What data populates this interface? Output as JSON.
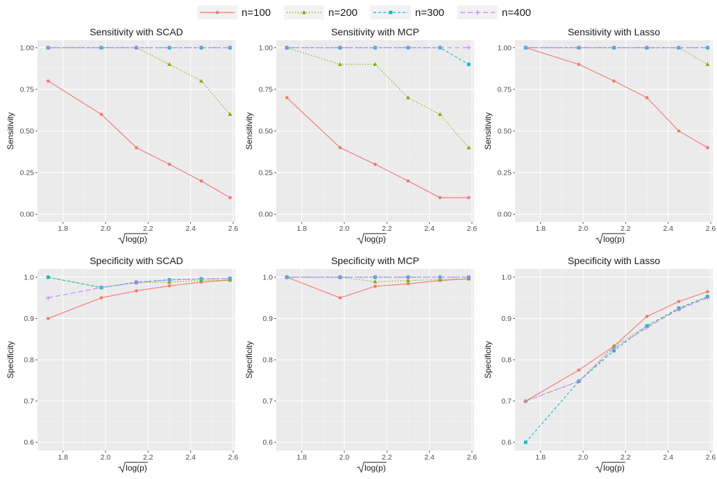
{
  "legend": {
    "items": [
      {
        "label": "n=100",
        "color": "#F8766D",
        "dash": "solid",
        "marker": "circle"
      },
      {
        "label": "n=200",
        "color": "#7CAE00",
        "dash": "dotted",
        "marker": "triangle"
      },
      {
        "label": "n=300",
        "color": "#00BFC4",
        "dash": "dashed",
        "marker": "square"
      },
      {
        "label": "n=400",
        "color": "#C77CFF",
        "dash": "longdash",
        "marker": "plus"
      }
    ]
  },
  "chart_data": [
    {
      "type": "line",
      "title": "Sensitivity with SCAD",
      "xlabel": "log(p)",
      "ylabel": "Sensitivity",
      "x": [
        1.73,
        1.98,
        2.145,
        2.3,
        2.45,
        2.585
      ],
      "xlim": [
        1.68,
        2.61
      ],
      "ylim": [
        -0.045,
        1.045
      ],
      "xticks": [
        1.8,
        2.0,
        2.2,
        2.4,
        2.6
      ],
      "yticks": [
        0.0,
        0.25,
        0.5,
        0.75,
        1.0
      ],
      "xtick_labels": [
        "1.8",
        "2.0",
        "2.2",
        "2.4",
        "2.6"
      ],
      "ytick_labels": [
        "0.00",
        "0.25",
        "0.50",
        "0.75",
        "1.00"
      ],
      "series": [
        {
          "name": "n=100",
          "values": [
            0.8,
            0.6,
            0.4,
            0.3,
            0.2,
            0.1
          ]
        },
        {
          "name": "n=200",
          "values": [
            1.0,
            1.0,
            1.0,
            0.9,
            0.8,
            0.6
          ]
        },
        {
          "name": "n=300",
          "values": [
            1.0,
            1.0,
            1.0,
            1.0,
            1.0,
            1.0
          ]
        },
        {
          "name": "n=400",
          "values": [
            1.0,
            1.0,
            1.0,
            1.0,
            1.0,
            1.0
          ]
        }
      ]
    },
    {
      "type": "line",
      "title": "Sensitivity with MCP",
      "xlabel": "log(p)",
      "ylabel": "Sensitivity",
      "x": [
        1.73,
        1.98,
        2.145,
        2.3,
        2.45,
        2.585
      ],
      "xlim": [
        1.68,
        2.61
      ],
      "ylim": [
        -0.045,
        1.045
      ],
      "xticks": [
        1.8,
        2.0,
        2.2,
        2.4,
        2.6
      ],
      "yticks": [
        0.0,
        0.25,
        0.5,
        0.75,
        1.0
      ],
      "xtick_labels": [
        "1.8",
        "2.0",
        "2.2",
        "2.4",
        "2.6"
      ],
      "ytick_labels": [
        "0.00",
        "0.25",
        "0.50",
        "0.75",
        "1.00"
      ],
      "series": [
        {
          "name": "n=100",
          "values": [
            0.7,
            0.4,
            0.3,
            0.2,
            0.1,
            0.1
          ]
        },
        {
          "name": "n=200",
          "values": [
            1.0,
            0.9,
            0.9,
            0.7,
            0.6,
            0.4
          ]
        },
        {
          "name": "n=300",
          "values": [
            1.0,
            1.0,
            1.0,
            1.0,
            1.0,
            0.9
          ]
        },
        {
          "name": "n=400",
          "values": [
            1.0,
            1.0,
            1.0,
            1.0,
            1.0,
            1.0
          ]
        }
      ]
    },
    {
      "type": "line",
      "title": "Sensitivity with Lasso",
      "xlabel": "log(p)",
      "ylabel": "Sensitivity",
      "x": [
        1.73,
        1.98,
        2.145,
        2.3,
        2.45,
        2.585
      ],
      "xlim": [
        1.68,
        2.61
      ],
      "ylim": [
        -0.045,
        1.045
      ],
      "xticks": [
        1.8,
        2.0,
        2.2,
        2.4,
        2.6
      ],
      "yticks": [
        0.0,
        0.25,
        0.5,
        0.75,
        1.0
      ],
      "xtick_labels": [
        "1.8",
        "2.0",
        "2.2",
        "2.4",
        "2.6"
      ],
      "ytick_labels": [
        "0.00",
        "0.25",
        "0.50",
        "0.75",
        "1.00"
      ],
      "series": [
        {
          "name": "n=100",
          "values": [
            1.0,
            0.9,
            0.8,
            0.7,
            0.5,
            0.4
          ]
        },
        {
          "name": "n=200",
          "values": [
            1.0,
            1.0,
            1.0,
            1.0,
            1.0,
            0.9
          ]
        },
        {
          "name": "n=300",
          "values": [
            1.0,
            1.0,
            1.0,
            1.0,
            1.0,
            1.0
          ]
        },
        {
          "name": "n=400",
          "values": [
            1.0,
            1.0,
            1.0,
            1.0,
            1.0,
            1.0
          ]
        }
      ]
    },
    {
      "type": "line",
      "title": "Specificity with SCAD",
      "xlabel": "log(p)",
      "ylabel": "Specificity",
      "x": [
        1.73,
        1.98,
        2.145,
        2.3,
        2.45,
        2.585
      ],
      "xlim": [
        1.68,
        2.61
      ],
      "ylim": [
        0.58,
        1.02
      ],
      "xticks": [
        1.8,
        2.0,
        2.2,
        2.4,
        2.6
      ],
      "yticks": [
        0.6,
        0.7,
        0.8,
        0.9,
        1.0
      ],
      "xtick_labels": [
        "1.8",
        "2.0",
        "2.2",
        "2.4",
        "2.6"
      ],
      "ytick_labels": [
        "0.6",
        "0.7",
        "0.8",
        "0.9",
        "1.0"
      ],
      "series": [
        {
          "name": "n=100",
          "values": [
            0.9,
            0.95,
            0.967,
            0.979,
            0.988,
            0.993
          ]
        },
        {
          "name": "n=200",
          "values": [
            1.0,
            0.975,
            0.987,
            0.988,
            0.992,
            0.993
          ]
        },
        {
          "name": "n=300",
          "values": [
            1.0,
            0.975,
            0.988,
            0.994,
            0.996,
            0.997
          ]
        },
        {
          "name": "n=400",
          "values": [
            0.95,
            0.975,
            0.987,
            0.993,
            0.996,
            0.997
          ]
        }
      ]
    },
    {
      "type": "line",
      "title": "Specificity with MCP",
      "xlabel": "log(p)",
      "ylabel": "Specificity",
      "x": [
        1.73,
        1.98,
        2.145,
        2.3,
        2.45,
        2.585
      ],
      "xlim": [
        1.68,
        2.61
      ],
      "ylim": [
        0.58,
        1.02
      ],
      "xticks": [
        1.8,
        2.0,
        2.2,
        2.4,
        2.6
      ],
      "yticks": [
        0.6,
        0.7,
        0.8,
        0.9,
        1.0
      ],
      "xtick_labels": [
        "1.8",
        "2.0",
        "2.2",
        "2.4",
        "2.6"
      ],
      "ytick_labels": [
        "0.6",
        "0.7",
        "0.8",
        "0.9",
        "1.0"
      ],
      "series": [
        {
          "name": "n=100",
          "values": [
            1.0,
            0.95,
            0.978,
            0.984,
            0.992,
            0.996
          ]
        },
        {
          "name": "n=200",
          "values": [
            1.0,
            1.0,
            0.989,
            0.992,
            0.994,
            0.996
          ]
        },
        {
          "name": "n=300",
          "values": [
            1.0,
            1.0,
            1.0,
            1.0,
            1.0,
            1.0
          ]
        },
        {
          "name": "n=400",
          "values": [
            1.0,
            1.0,
            1.0,
            1.0,
            1.0,
            1.0
          ]
        }
      ]
    },
    {
      "type": "line",
      "title": "Specificity with Lasso",
      "xlabel": "log(p)",
      "ylabel": "Specificity",
      "x": [
        1.73,
        1.98,
        2.145,
        2.3,
        2.45,
        2.585
      ],
      "xlim": [
        1.68,
        2.61
      ],
      "ylim": [
        0.58,
        1.02
      ],
      "xticks": [
        1.8,
        2.0,
        2.2,
        2.4,
        2.6
      ],
      "yticks": [
        0.6,
        0.7,
        0.8,
        0.9,
        1.0
      ],
      "xtick_labels": [
        "1.8",
        "2.0",
        "2.2",
        "2.4",
        "2.6"
      ],
      "ytick_labels": [
        "0.6",
        "0.7",
        "0.8",
        "0.9",
        "1.0"
      ],
      "series": [
        {
          "name": "n=100",
          "values": [
            0.7,
            0.775,
            0.833,
            0.905,
            0.941,
            0.965
          ]
        },
        {
          "name": "n=200",
          "values": [
            0.7,
            0.748,
            0.833,
            0.882,
            0.923,
            0.953
          ]
        },
        {
          "name": "n=300",
          "values": [
            0.6,
            0.748,
            0.822,
            0.882,
            0.925,
            0.953
          ]
        },
        {
          "name": "n=400",
          "values": [
            0.7,
            0.748,
            0.828,
            0.878,
            0.922,
            0.95
          ]
        }
      ]
    }
  ]
}
